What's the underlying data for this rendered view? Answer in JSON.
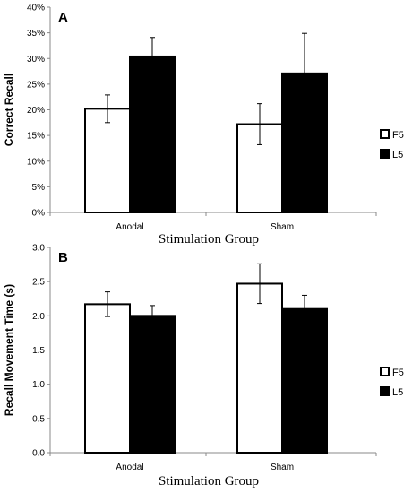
{
  "figure": {
    "chart_data": [
      {
        "type": "bar",
        "panel": "A",
        "title": "",
        "ylabel": "Correct Recall",
        "xlabel": "Stimulation Group",
        "categories": [
          "Anodal",
          "Sham"
        ],
        "ylim": [
          0,
          40
        ],
        "yticks": [
          0,
          5,
          10,
          15,
          20,
          25,
          30,
          35,
          40
        ],
        "ytick_labels": [
          "0%",
          "5%",
          "10%",
          "15%",
          "20%",
          "25%",
          "30%",
          "35%",
          "40%"
        ],
        "series": [
          {
            "name": "F5",
            "color": "#ffffff",
            "values": [
              20.2,
              17.2
            ],
            "errors": [
              2.7,
              4.0
            ]
          },
          {
            "name": "L5",
            "color": "#000000",
            "values": [
              30.4,
              27.1
            ],
            "errors": [
              3.7,
              7.8
            ]
          }
        ],
        "legend_position": "right",
        "grid": false
      },
      {
        "type": "bar",
        "panel": "B",
        "title": "",
        "ylabel": "Recall Movement Time (s)",
        "xlabel": "Stimulation Group",
        "categories": [
          "Anodal",
          "Sham"
        ],
        "ylim": [
          0,
          3.0
        ],
        "yticks": [
          0,
          0.5,
          1,
          1.5,
          2,
          2.5,
          3
        ],
        "ytick_labels": [
          "0.0",
          "0.5",
          "1.0",
          "1.5",
          "2.0",
          "2.5",
          "3.0"
        ],
        "series": [
          {
            "name": "F5",
            "color": "#ffffff",
            "values": [
              2.17,
              2.47
            ],
            "errors": [
              0.18,
              0.29
            ]
          },
          {
            "name": "L5",
            "color": "#000000",
            "values": [
              2.0,
              2.1
            ],
            "errors": [
              0.15,
              0.2
            ]
          }
        ],
        "legend_position": "right",
        "grid": false
      }
    ]
  }
}
